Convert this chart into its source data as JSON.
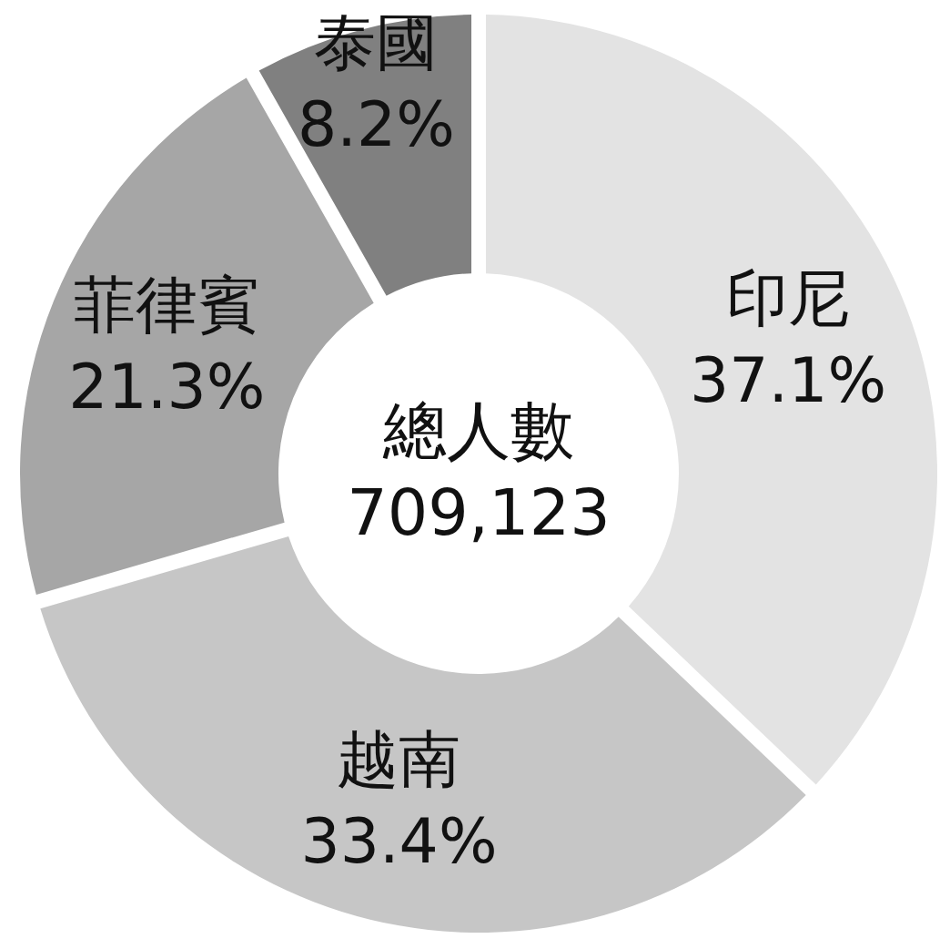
{
  "chart_data": {
    "type": "donut",
    "categories": [
      "印尼",
      "越南",
      "菲律賓",
      "泰國"
    ],
    "values": [
      37.1,
      33.4,
      21.3,
      8.2
    ],
    "colors": [
      "#e3e3e3",
      "#c6c6c6",
      "#a6a6a6",
      "#808080"
    ],
    "value_labels": [
      "37.1%",
      "33.4%",
      "21.3%",
      "8.2%"
    ],
    "annotations": [
      "總人數\n709,123"
    ]
  }
}
